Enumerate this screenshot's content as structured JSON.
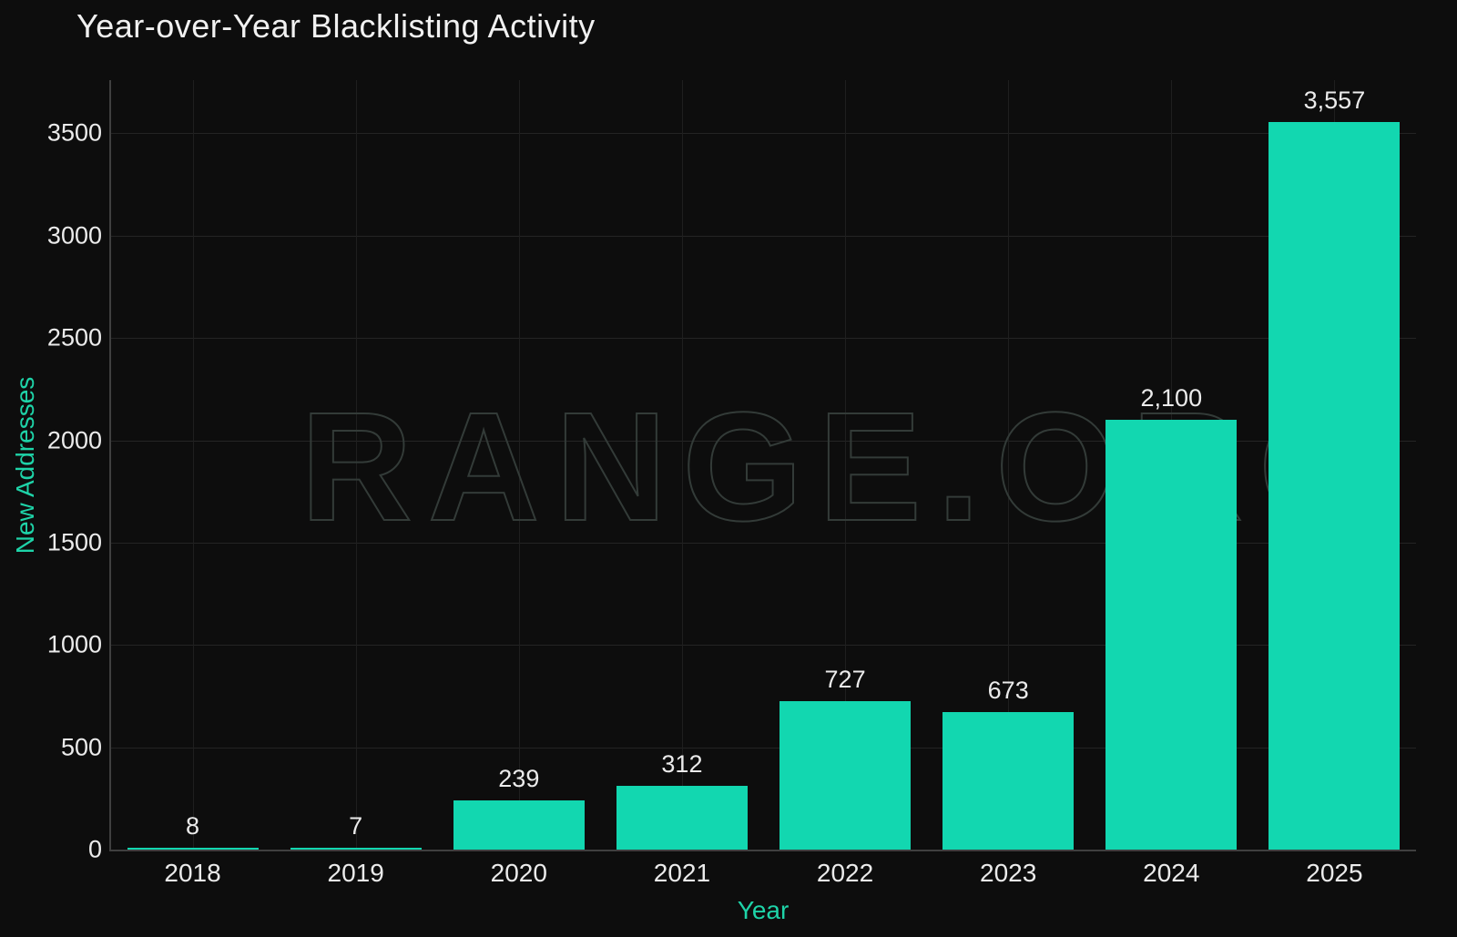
{
  "title": "Year-over-Year Blacklisting Activity",
  "watermark_text": "RANGE.ORG",
  "colors": {
    "background": "#0d0d0d",
    "bar": "#12d7b0",
    "axis_title_text": "#1ed3a8",
    "tick_text": "#ebebeb",
    "title_text": "#f1f1f1",
    "gridline": "#242424",
    "axis_line": "#3f3f3f",
    "watermark_outline": "#333b38"
  },
  "chart_data": {
    "type": "bar",
    "title": "Year-over-Year Blacklisting Activity",
    "categories": [
      "2018",
      "2019",
      "2020",
      "2021",
      "2022",
      "2023",
      "2024",
      "2025"
    ],
    "values": [
      8,
      7,
      239,
      312,
      727,
      673,
      2100,
      3557
    ],
    "value_labels": [
      "8",
      "7",
      "239",
      "312",
      "727",
      "673",
      "2,100",
      "3,557"
    ],
    "xlabel": "Year",
    "ylabel": "New Addresses",
    "yticks": [
      0,
      500,
      1000,
      1500,
      2000,
      2500,
      3000,
      3500
    ],
    "ytick_labels": [
      "0",
      "500",
      "1000",
      "1500",
      "2000",
      "2500",
      "3000",
      "3500"
    ],
    "ylim": [
      0,
      3760
    ],
    "grid": true,
    "legend": "none",
    "watermark": "RANGE.ORG"
  }
}
